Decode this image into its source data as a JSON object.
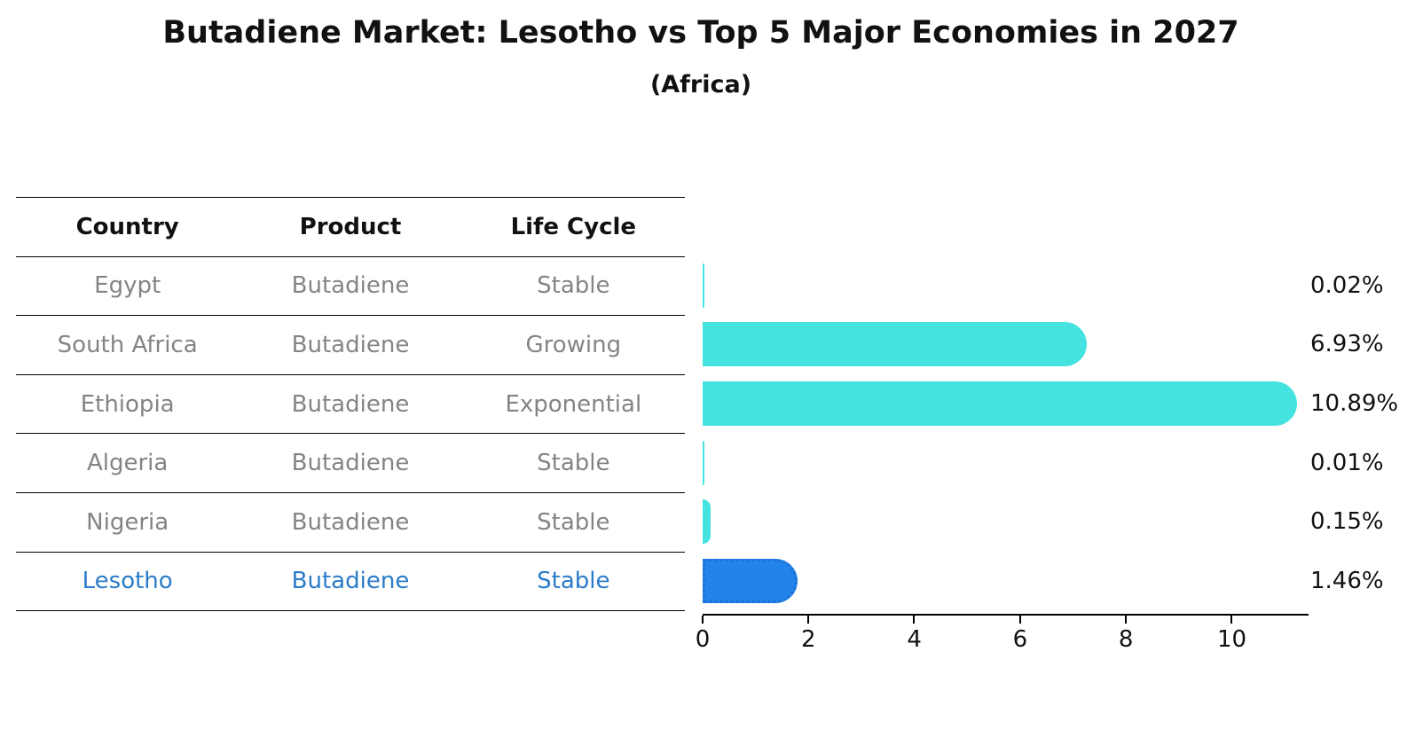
{
  "title": "Butadiene Market: Lesotho vs Top 5 Major Economies in 2027",
  "subtitle": "(Africa)",
  "table": {
    "headers": [
      "Country",
      "Product",
      "Life Cycle"
    ],
    "rows": [
      {
        "country": "Egypt",
        "product": "Butadiene",
        "life_cycle": "Stable",
        "highlighted": false
      },
      {
        "country": "South Africa",
        "product": "Butadiene",
        "life_cycle": "Growing",
        "highlighted": false
      },
      {
        "country": "Ethiopia",
        "product": "Butadiene",
        "life_cycle": "Exponential",
        "highlighted": false
      },
      {
        "country": "Algeria",
        "product": "Butadiene",
        "life_cycle": "Stable",
        "highlighted": false
      },
      {
        "country": "Nigeria",
        "product": "Butadiene",
        "life_cycle": "Stable",
        "highlighted": false
      },
      {
        "country": "Lesotho",
        "product": "Butadiene",
        "life_cycle": "Stable",
        "highlighted": true
      }
    ]
  },
  "chart_data": {
    "type": "bar",
    "orientation": "horizontal",
    "categories": [
      "Egypt",
      "South Africa",
      "Ethiopia",
      "Algeria",
      "Nigeria",
      "Lesotho"
    ],
    "values": [
      0.02,
      6.93,
      10.89,
      0.01,
      0.15,
      1.46
    ],
    "value_labels": [
      "0.02%",
      "6.93%",
      "10.89%",
      "0.01%",
      "0.15%",
      "1.46%"
    ],
    "xlim": [
      0,
      11.45
    ],
    "xticks": [
      0,
      2,
      4,
      6,
      8,
      10
    ],
    "grid": false,
    "legend": null,
    "bar_color": "#45E3E0",
    "highlight_bar_color": "#2283EA",
    "highlight_index": 5
  },
  "colors": {
    "background": "#FFFFFF",
    "title_text": "#111111",
    "table_text": "#848484",
    "highlight_text": "#2B7CC9",
    "axis": "#000000"
  }
}
